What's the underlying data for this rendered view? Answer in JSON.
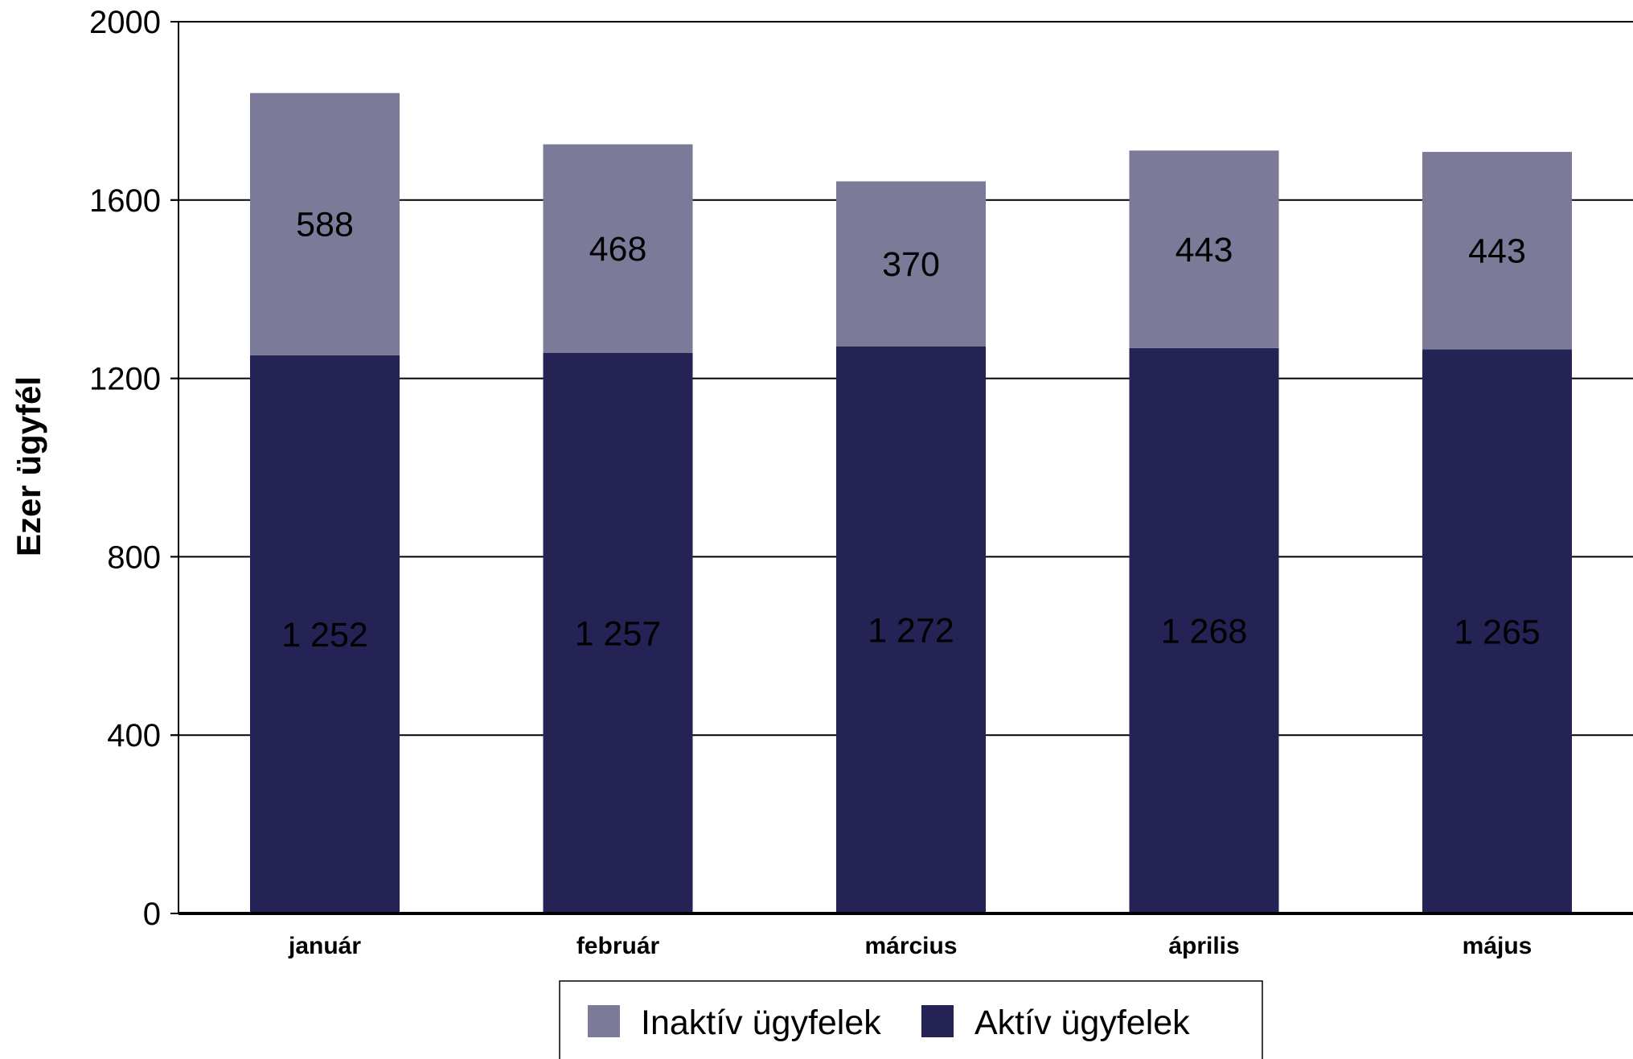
{
  "colors": {
    "inactive": "#7b7a99",
    "active": "#252256",
    "grid": "#000000",
    "background": "#ffffff"
  },
  "chart_data": {
    "type": "bar",
    "stacked": true,
    "categories": [
      "január",
      "február",
      "március",
      "április",
      "május"
    ],
    "series": [
      {
        "name": "Aktív ügyfelek",
        "values": [
          1252,
          1257,
          1272,
          1268,
          1265
        ],
        "labels": [
          "1 252",
          "1 257",
          "1 272",
          "1 268",
          "1 265"
        ]
      },
      {
        "name": "Inaktív ügyfelek",
        "values": [
          588,
          468,
          370,
          443,
          443
        ],
        "labels": [
          "588",
          "468",
          "370",
          "443",
          "443"
        ]
      }
    ],
    "ylabel": "Ezer ügyfél",
    "xlabel": "",
    "ylim": [
      0,
      2000
    ],
    "yticks": [
      0,
      400,
      800,
      1200,
      1600,
      2000
    ],
    "ytick_labels": [
      "0",
      "400",
      "800",
      "1200",
      "1600",
      "2000"
    ],
    "grid": true,
    "legend_position": "bottom-center",
    "legend_order": [
      "Inaktív ügyfelek",
      "Aktív ügyfelek"
    ]
  }
}
